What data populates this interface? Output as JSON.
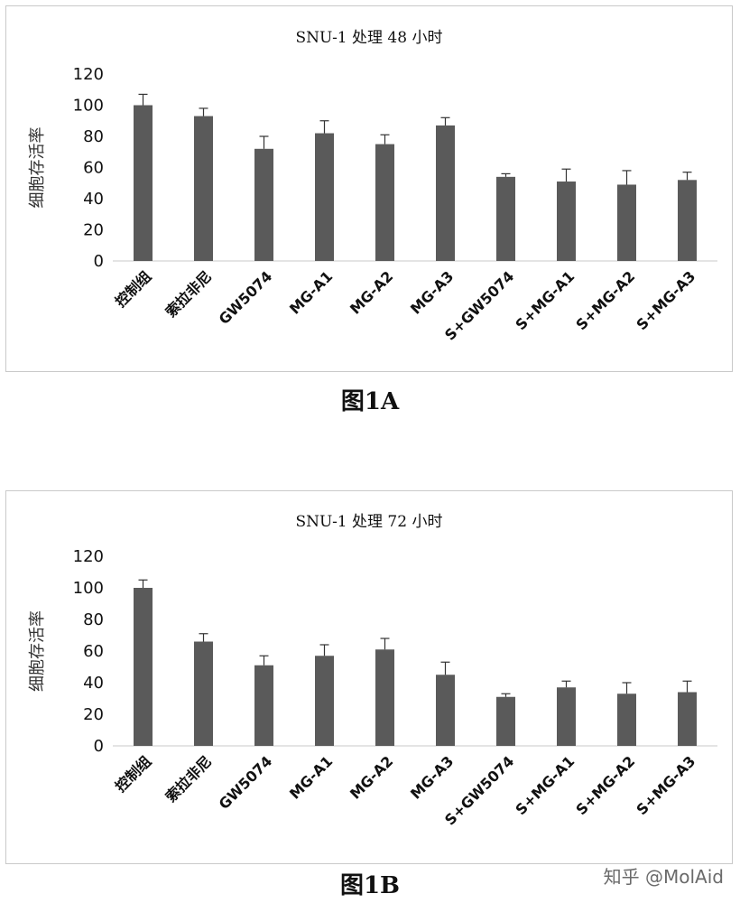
{
  "charts": [
    {
      "id": "A",
      "caption": "图1A",
      "chart_data": {
        "type": "bar",
        "title": "SNU-1 处理 48 小时",
        "ylabel": "细胞存活率",
        "xlabel": "",
        "ylim": [
          0,
          120
        ],
        "yticks": [
          0,
          20,
          40,
          60,
          80,
          100,
          120
        ],
        "grid": false,
        "categories": [
          "控制组",
          "索拉非尼",
          "GW5074",
          "MG-A1",
          "MG-A2",
          "MG-A3",
          "S+GW5074",
          "S+MG-A1",
          "S+MG-A2",
          "S+MG-A3"
        ],
        "values": [
          100,
          93,
          72,
          82,
          75,
          87,
          54,
          51,
          49,
          52
        ],
        "errors": [
          7,
          5,
          8,
          8,
          6,
          5,
          2,
          8,
          9,
          5
        ],
        "bar_color": "#5a5a5a"
      }
    },
    {
      "id": "B",
      "caption": "图1B",
      "chart_data": {
        "type": "bar",
        "title": "SNU-1 处理 72 小时",
        "ylabel": "细胞存活率",
        "xlabel": "",
        "ylim": [
          0,
          120
        ],
        "yticks": [
          0,
          20,
          40,
          60,
          80,
          100,
          120
        ],
        "grid": false,
        "categories": [
          "控制组",
          "索拉非尼",
          "GW5074",
          "MG-A1",
          "MG-A2",
          "MG-A3",
          "S+GW5074",
          "S+MG-A1",
          "S+MG-A2",
          "S+MG-A3"
        ],
        "values": [
          100,
          66,
          51,
          57,
          61,
          45,
          31,
          37,
          33,
          34
        ],
        "errors": [
          5,
          5,
          6,
          7,
          7,
          8,
          2,
          4,
          7,
          7
        ],
        "bar_color": "#5a5a5a"
      }
    }
  ],
  "watermark": "知乎 @MolAid"
}
